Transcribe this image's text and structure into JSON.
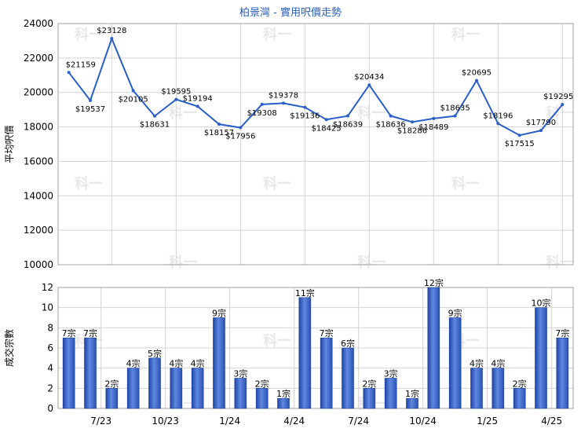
{
  "chart_data": [
    {
      "type": "line",
      "title": "柏景灣 - 實用呎價走勢",
      "ylabel": "平均呎價",
      "ylim": [
        10000,
        24000
      ],
      "yticks": [
        10000,
        12000,
        14000,
        16000,
        18000,
        20000,
        22000,
        24000
      ],
      "grid": true,
      "color": "#2a5fc8",
      "series": [
        {
          "values": [
            21159,
            19537,
            23128,
            20105,
            18631,
            19595,
            19194,
            18157,
            17956,
            19308,
            19378,
            19136,
            18425,
            18639,
            20434,
            18636,
            18286,
            18489,
            18635,
            20695,
            18196,
            17515,
            17790,
            19295
          ],
          "labels": [
            "$21159",
            "$19537",
            "$23128",
            "$20105",
            "$18631",
            "$19595",
            "$19194",
            "$18157",
            "$17956",
            "$19308",
            "$19378",
            "$19136",
            "$18425",
            "$18639",
            "$20434",
            "$18636",
            "$18286",
            "$18489",
            "$18635",
            "$20695",
            "$18196",
            "$17515",
            "$17790",
            "$19295"
          ]
        }
      ]
    },
    {
      "type": "bar",
      "ylabel": "成交宗數",
      "ylim": [
        0,
        12
      ],
      "yticks": [
        0,
        2,
        4,
        6,
        8,
        10,
        12
      ],
      "grid": true,
      "color": "#3a64c8",
      "series": [
        {
          "values": [
            7,
            7,
            2,
            4,
            5,
            4,
            4,
            9,
            3,
            2,
            1,
            11,
            7,
            6,
            2,
            3,
            1,
            12,
            9,
            4,
            4,
            2,
            10,
            7
          ],
          "labels": [
            "7宗",
            "7宗",
            "2宗",
            "4宗",
            "5宗",
            "4宗",
            "4宗",
            "9宗",
            "3宗",
            "2宗",
            "1宗",
            "11宗",
            "7宗",
            "6宗",
            "2宗",
            "3宗",
            "1宗",
            "12宗",
            "9宗",
            "4宗",
            "4宗",
            "2宗",
            "10宗",
            "7宗"
          ]
        }
      ],
      "x_tick_labels": [
        {
          "index": 2,
          "label": "7/23"
        },
        {
          "index": 5,
          "label": "10/23"
        },
        {
          "index": 8,
          "label": "1/24"
        },
        {
          "index": 11,
          "label": "4/24"
        },
        {
          "index": 14,
          "label": "7/24"
        },
        {
          "index": 17,
          "label": "10/24"
        },
        {
          "index": 20,
          "label": "1/25"
        },
        {
          "index": 23,
          "label": "4/25"
        }
      ]
    }
  ],
  "watermark": "科一"
}
